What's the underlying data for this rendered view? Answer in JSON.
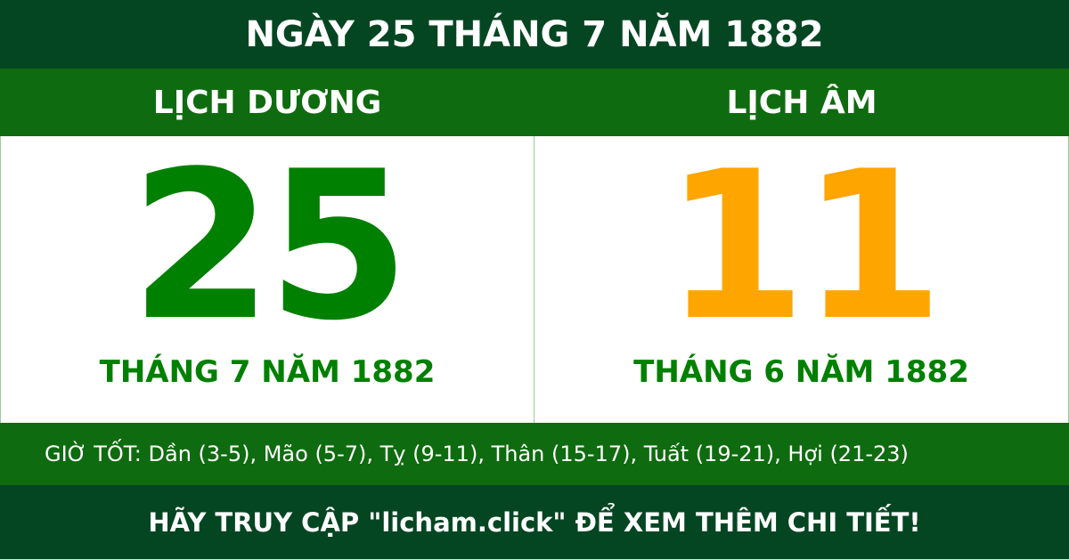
{
  "header": {
    "title": "NGÀY 25 THÁNG 7 NĂM 1882"
  },
  "solar": {
    "label": "LỊCH DƯƠNG",
    "day": "25",
    "month_year": "THÁNG 7 NĂM 1882"
  },
  "lunar": {
    "label": "LỊCH ÂM",
    "day": "11",
    "month_year": "THÁNG 6 NĂM 1882"
  },
  "good_hours": "GIỜ TỐT: Dần (3-5), Mão (5-7), Tỵ (9-11), Thân (15-17), Tuất (19-21), Hợi (21-23)",
  "footer": "HÃY TRUY CẬP \"licham.click\" ĐỂ XEM THÊM CHI TIẾT!",
  "colors": {
    "dark_green": "#044622",
    "band_green": "#0f6b0f",
    "solar_green": "#008000",
    "lunar_orange": "#ffa500"
  }
}
